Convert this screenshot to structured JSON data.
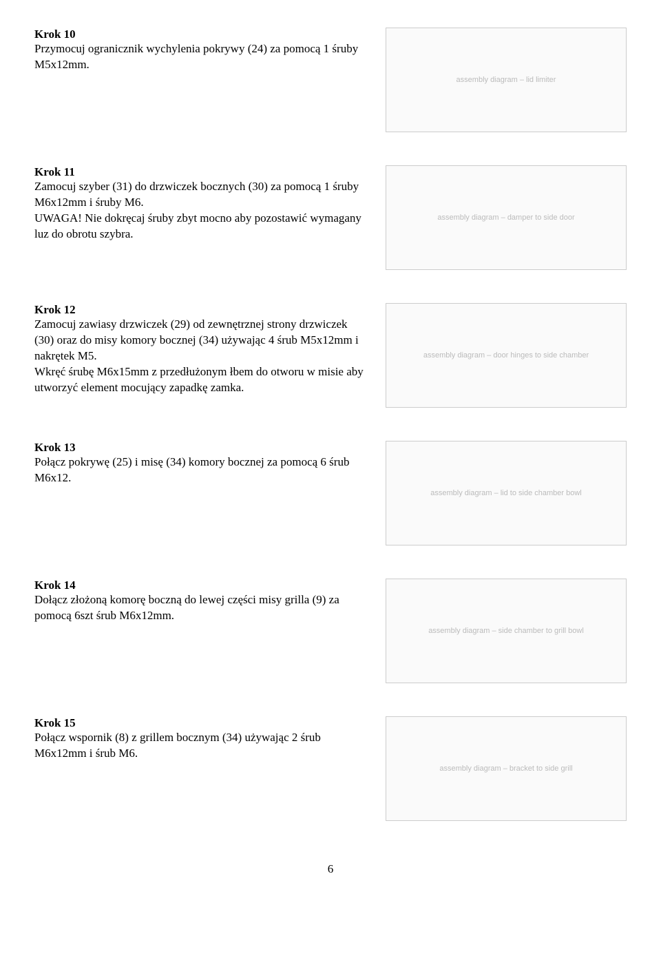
{
  "steps": {
    "s10": {
      "title": "Krok 10",
      "body": "Przymocuj ogranicznik wychylenia pokrywy (24) za pomocą 1 śruby M5x12mm."
    },
    "s11": {
      "title": "Krok 11",
      "body": "Zamocuj szyber (31) do drzwiczek bocznych (30) za pomocą 1 śruby M6x12mm i śruby M6.",
      "warning": "UWAGA! Nie dokręcaj śruby zbyt mocno aby pozostawić wymagany luz do obrotu szybra."
    },
    "s12": {
      "title": "Krok 12",
      "body": "Zamocuj zawiasy drzwiczek (29) od zewnętrznej strony drzwiczek (30) oraz do misy komory bocznej (34) używając 4 śrub M5x12mm i nakrętek M5.",
      "body2": "Wkręć śrubę M6x15mm z przedłużonym łbem do otworu w misie aby utworzyć element mocujący zapadkę zamka."
    },
    "s13": {
      "title": "Krok 13",
      "body": "Połącz pokrywę (25) i misę (34) komory bocznej za pomocą 6 śrub M6x12."
    },
    "s14": {
      "title": "Krok 14",
      "body": "Dołącz złożoną komorę boczną do lewej części misy grilla (9) za pomocą 6szt śrub M6x12mm."
    },
    "s15": {
      "title": "Krok 15",
      "body": "Połącz wspornik (8) z grillem bocznym (34) używając 2 śrub M6x12mm i śrub M6."
    }
  },
  "figures": {
    "f10": "assembly diagram – lid limiter",
    "f11": "assembly diagram – damper to side door",
    "f12": "assembly diagram – door hinges to side chamber",
    "f13": "assembly diagram – lid to side chamber bowl",
    "f14": "assembly diagram – side chamber to grill bowl",
    "f15": "assembly diagram – bracket to side grill"
  },
  "pageNumber": "6"
}
